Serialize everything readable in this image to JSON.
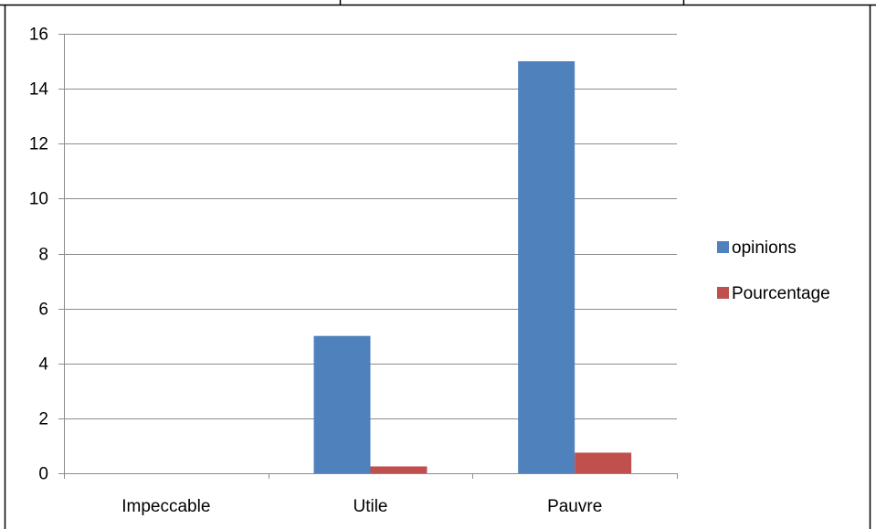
{
  "chart_data": {
    "type": "bar",
    "categories": [
      "Impeccable",
      "Utile",
      "Pauvre"
    ],
    "series": [
      {
        "name": "opinions",
        "color": "#4F81BD",
        "values": [
          0,
          5,
          15
        ]
      },
      {
        "name": "Pourcentage",
        "color": "#C0504D",
        "values": [
          0,
          0.25,
          0.75
        ]
      }
    ],
    "ylim": [
      0,
      16
    ],
    "yticks": [
      0,
      2,
      4,
      6,
      8,
      10,
      12,
      14,
      16
    ],
    "grid": true,
    "legend_position": "right",
    "title": "",
    "xlabel": "",
    "ylabel": ""
  }
}
